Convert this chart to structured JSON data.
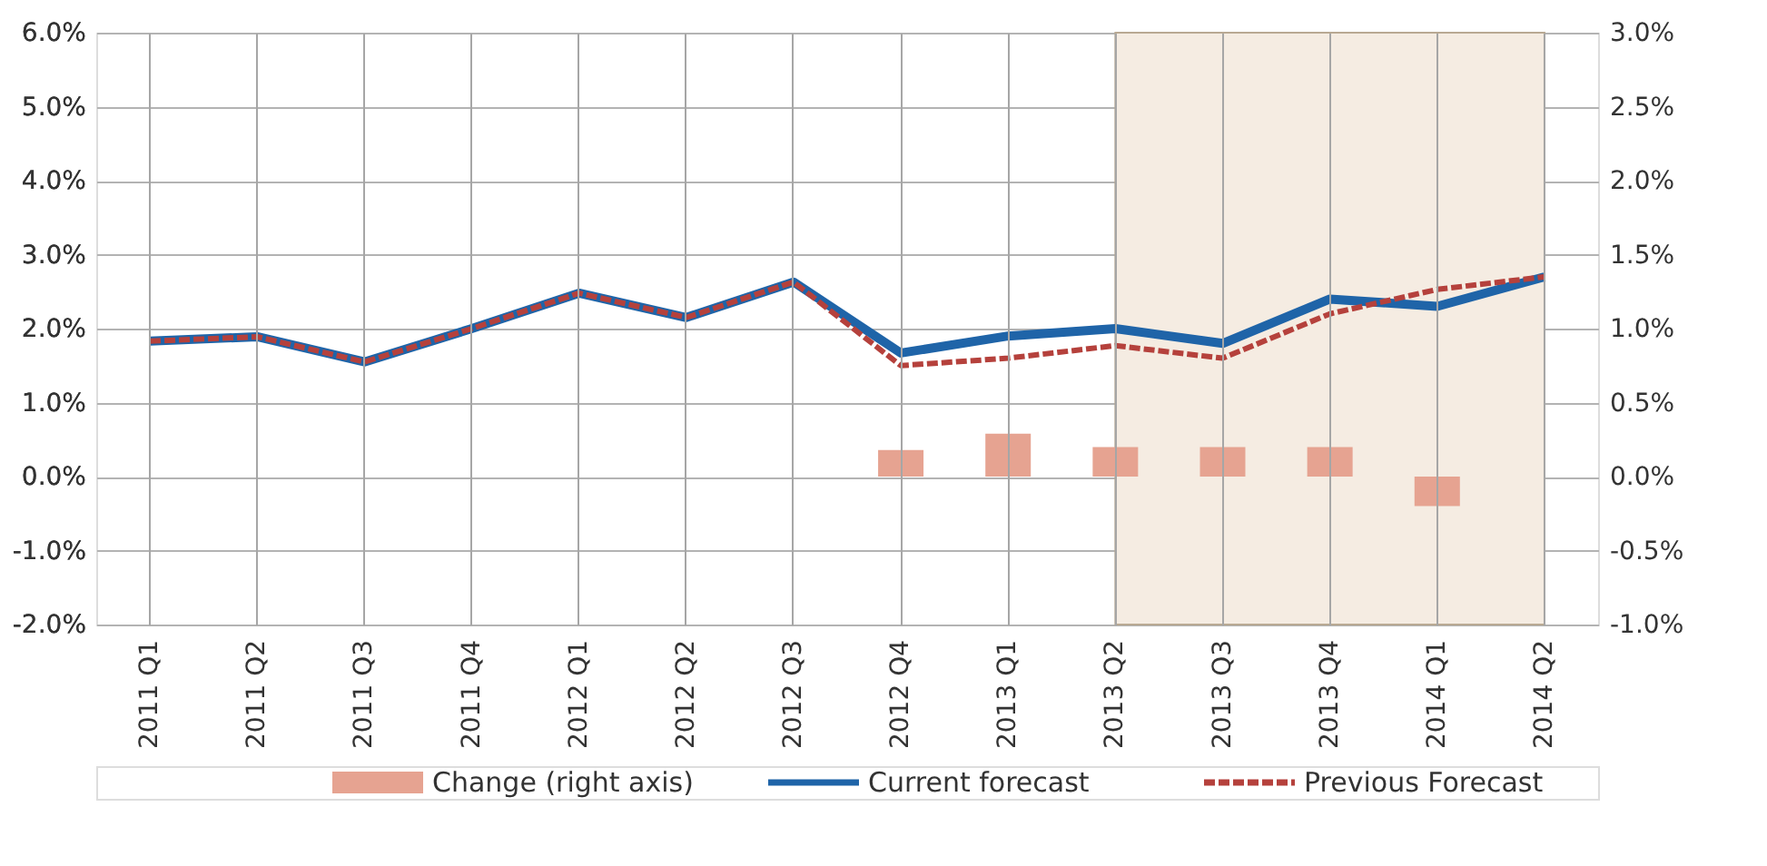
{
  "chart_data": {
    "type": "line",
    "categories": [
      "2011 Q1",
      "2011 Q2",
      "2011 Q3",
      "2011 Q4",
      "2012 Q1",
      "2012 Q2",
      "2012 Q3",
      "2012 Q4",
      "2013 Q1",
      "2013 Q2",
      "2013 Q3",
      "2013 Q4",
      "2014 Q1",
      "2014 Q2"
    ],
    "series": [
      {
        "name": "Change  (right axis)",
        "type": "bar",
        "axis": "y2",
        "color": "#e6a391",
        "values": [
          null,
          null,
          null,
          null,
          null,
          null,
          null,
          0.18,
          0.29,
          0.2,
          0.2,
          0.2,
          -0.2,
          null
        ]
      },
      {
        "name": "Current forecast",
        "color": "#1f64a8",
        "line_style": "solid",
        "values": [
          1.83,
          1.89,
          1.55,
          2.0,
          2.48,
          2.15,
          2.63,
          1.67,
          1.9,
          2.0,
          1.8,
          2.4,
          2.3,
          2.7
        ]
      },
      {
        "name": "Previous Forecast",
        "color": "#b5413c",
        "line_style": "dashed",
        "values": [
          1.83,
          1.89,
          1.55,
          2.0,
          2.48,
          2.15,
          2.63,
          1.5,
          1.6,
          1.77,
          1.6,
          2.2,
          2.53,
          2.7
        ]
      }
    ],
    "ylim": [
      -2,
      6
    ],
    "yticks": [
      {
        "value": -2,
        "label": "-2.0%"
      },
      {
        "value": -1,
        "label": "-1.0%"
      },
      {
        "value": 0,
        "label": "0.0%"
      },
      {
        "value": 1,
        "label": "1.0%"
      },
      {
        "value": 2,
        "label": "2.0%"
      },
      {
        "value": 3,
        "label": "3.0%"
      },
      {
        "value": 4,
        "label": "4.0%"
      },
      {
        "value": 5,
        "label": "5.0%"
      },
      {
        "value": 6,
        "label": "6.0%"
      }
    ],
    "y2lim": [
      -1,
      3
    ],
    "y2ticks": [
      {
        "value": -1,
        "label": "-1.0%"
      },
      {
        "value": -0.5,
        "label": "-0.5%"
      },
      {
        "value": 0,
        "label": "0.0%"
      },
      {
        "value": 0.5,
        "label": "0.5%"
      },
      {
        "value": 1,
        "label": "1.0%"
      },
      {
        "value": 1.5,
        "label": "1.5%"
      },
      {
        "value": 2,
        "label": "2.0%"
      },
      {
        "value": 2.5,
        "label": "2.5%"
      },
      {
        "value": 3,
        "label": "3.0%"
      }
    ],
    "bands": [
      {
        "axis": "x",
        "from": "2013 Q2",
        "to": "2014 Q2",
        "color": "#f5ece2"
      }
    ],
    "grid": true,
    "legend": "bottom"
  }
}
